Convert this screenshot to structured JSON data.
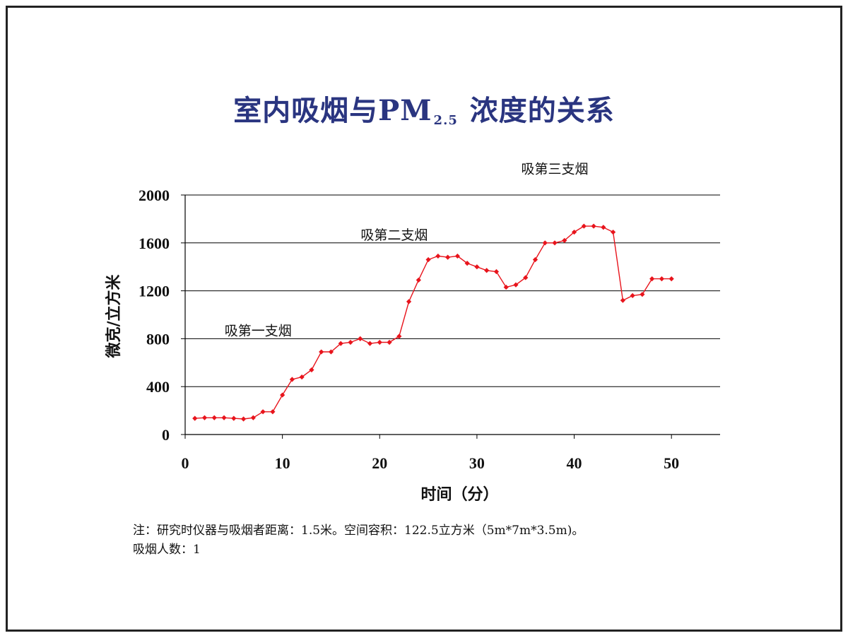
{
  "title": {
    "main": "室内吸烟与PM",
    "subscript": "2.5",
    "tail": " 浓度的关系"
  },
  "note": {
    "line1": "注：研究时仪器与吸烟者距离：1.5米。空间容积：122.5立方米（5m*7m*3.5m)。",
    "line2": "吸烟人数：1"
  },
  "colors": {
    "title": "#2a3580",
    "series": "#e8141c",
    "grid": "#000000"
  },
  "chart_data": {
    "type": "line",
    "title": "室内吸烟与PM2.5浓度的关系",
    "xlabel": "时间（分）",
    "ylabel": "微克/立方米",
    "xlim": [
      0,
      55
    ],
    "ylim": [
      0,
      2000
    ],
    "xticks": [
      0,
      10,
      20,
      30,
      40,
      50
    ],
    "yticks": [
      0,
      400,
      800,
      1200,
      1600,
      2000
    ],
    "grid": "horizontal",
    "annotations": [
      {
        "text": "吸第一支烟",
        "x": 7.5,
        "y": 870
      },
      {
        "text": "吸第二支烟",
        "x": 21.5,
        "y": 1670
      },
      {
        "text": "吸第三支烟",
        "x": 38,
        "y": 2220
      }
    ],
    "series": [
      {
        "x": [
          1,
          2,
          3,
          4,
          5,
          6,
          7,
          8,
          9,
          10,
          11,
          12,
          13,
          14,
          15,
          16,
          17,
          18,
          19,
          20,
          21,
          22,
          23,
          24,
          25,
          26,
          27,
          28,
          29,
          30,
          31,
          32,
          33,
          34,
          35,
          36,
          37,
          38,
          39,
          40,
          41,
          42,
          43,
          44,
          45,
          46,
          47,
          48,
          49,
          50
        ],
        "values": [
          135,
          140,
          140,
          140,
          135,
          130,
          140,
          190,
          190,
          330,
          460,
          480,
          540,
          690,
          690,
          760,
          770,
          800,
          760,
          770,
          770,
          820,
          1110,
          1290,
          1460,
          1490,
          1480,
          1490,
          1430,
          1400,
          1370,
          1360,
          1230,
          1250,
          1310,
          1460,
          1600,
          1600,
          1620,
          1690,
          1740,
          1740,
          1730,
          1690,
          1120,
          1160,
          1170,
          1300,
          1300,
          1300
        ]
      }
    ]
  }
}
